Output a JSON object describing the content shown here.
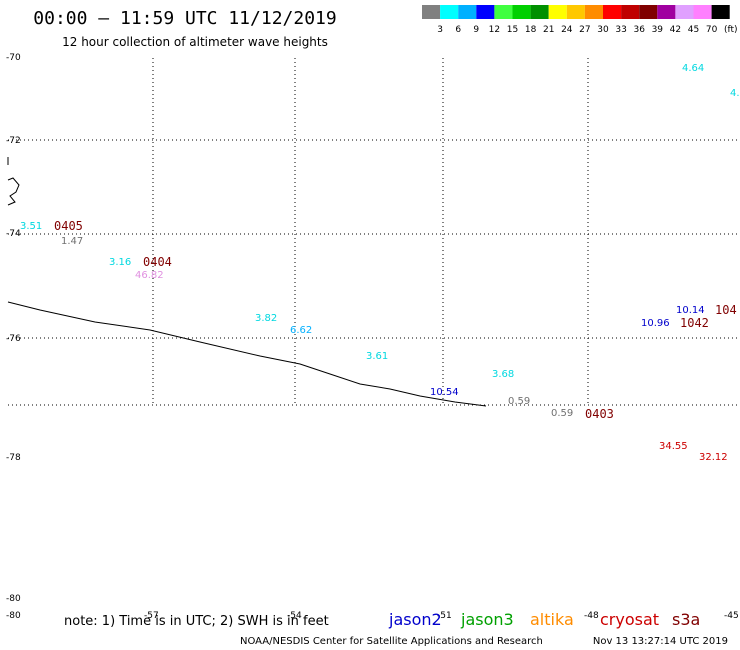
{
  "header": {
    "title": "00:00 – 11:59 UTC 11/12/2019",
    "subtitle": "12 hour collection of altimeter wave heights"
  },
  "colorbar": {
    "unit": "(ft)",
    "swatches": [
      {
        "color": "#808080",
        "label": "3"
      },
      {
        "color": "#00ffff",
        "label": "6"
      },
      {
        "color": "#00b0ff",
        "label": "9"
      },
      {
        "color": "#0000ff",
        "label": "12"
      },
      {
        "color": "#40ff40",
        "label": "15"
      },
      {
        "color": "#00d000",
        "label": "18"
      },
      {
        "color": "#009000",
        "label": "21"
      },
      {
        "color": "#ffff00",
        "label": "24"
      },
      {
        "color": "#ffc800",
        "label": "27"
      },
      {
        "color": "#ff8c00",
        "label": "30"
      },
      {
        "color": "#ff0000",
        "label": "33"
      },
      {
        "color": "#c00000",
        "label": "36"
      },
      {
        "color": "#800000",
        "label": "39"
      },
      {
        "color": "#a000a0",
        "label": "42"
      },
      {
        "color": "#e0a0ff",
        "label": "45"
      },
      {
        "color": "#ff80ff",
        "label": "70"
      },
      {
        "color": "#000000",
        "label": ""
      }
    ]
  },
  "axes": {
    "lat_labels": [
      "-70",
      "-72",
      "-74",
      "-76",
      "-78",
      "-80",
      "-80"
    ],
    "lon_labels": [
      "-57",
      "-54",
      "-51",
      "-48",
      "-45"
    ]
  },
  "wave_labels": [
    {
      "text": "4.64",
      "color": "#00d8e0"
    },
    {
      "text": "4.",
      "color": "#00d8e0"
    },
    {
      "text": "3.51",
      "color": "#00d8e0"
    },
    {
      "text": "1.47",
      "color": "#707070"
    },
    {
      "text": "3.16",
      "color": "#00d8e0"
    },
    {
      "text": "46.82",
      "color": "#e090e0"
    },
    {
      "text": "3.82",
      "color": "#00d8e0"
    },
    {
      "text": "6.62",
      "color": "#00b0ff"
    },
    {
      "text": "3.61",
      "color": "#00d8e0"
    },
    {
      "text": "10.54",
      "color": "#0000cc"
    },
    {
      "text": "3.68",
      "color": "#00d8e0"
    },
    {
      "text": "0.59",
      "color": "#707070"
    },
    {
      "text": "0.59",
      "color": "#707070"
    },
    {
      "text": "10.14",
      "color": "#0000cc"
    },
    {
      "text": "10.96",
      "color": "#0000cc"
    },
    {
      "text": "34.55",
      "color": "#cc0000"
    },
    {
      "text": "32.12",
      "color": "#cc0000"
    }
  ],
  "time_labels": [
    {
      "text": "0405"
    },
    {
      "text": "0404"
    },
    {
      "text": "1042"
    },
    {
      "text": "104"
    },
    {
      "text": "0403"
    }
  ],
  "footer": {
    "note": "note: 1) Time is in UTC; 2) SWH is in feet",
    "satellites": [
      {
        "name": "jason2",
        "color": "#0000cc"
      },
      {
        "name": "jason3",
        "color": "#00a000"
      },
      {
        "name": "altika",
        "color": "#ff8c00"
      },
      {
        "name": "cryosat",
        "color": "#cc0000"
      },
      {
        "name": "s3a",
        "color": "#800000"
      }
    ],
    "credit": "NOAA/NESDIS Center for Satellite Applications and Research",
    "timestamp": "Nov 13 13:27:14 UTC 2019"
  }
}
